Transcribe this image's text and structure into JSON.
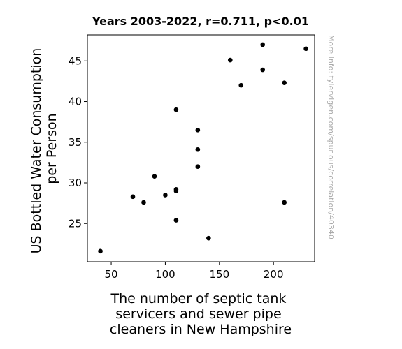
{
  "chart_data": {
    "type": "scatter",
    "title": "Years 2003-2022, r=0.711, p<0.01",
    "xlabel_lines": [
      "The number of septic tank",
      "servicers and sewer pipe",
      "cleaners in New Hampshire"
    ],
    "ylabel_lines": [
      "US Bottled Water Consumption",
      "per Person"
    ],
    "xlim": [
      28,
      238
    ],
    "ylim": [
      20.3,
      48.2
    ],
    "xticks": [
      50,
      100,
      150,
      200
    ],
    "yticks": [
      25,
      30,
      35,
      40,
      45
    ],
    "marker_color": "#000000",
    "grid": false,
    "points": [
      {
        "x": 40,
        "y": 21.6
      },
      {
        "x": 70,
        "y": 28.3
      },
      {
        "x": 80,
        "y": 27.6
      },
      {
        "x": 90,
        "y": 30.8
      },
      {
        "x": 100,
        "y": 28.5
      },
      {
        "x": 110,
        "y": 29.2
      },
      {
        "x": 110,
        "y": 29.0
      },
      {
        "x": 110,
        "y": 25.4
      },
      {
        "x": 110,
        "y": 39.0
      },
      {
        "x": 130,
        "y": 36.5
      },
      {
        "x": 130,
        "y": 34.1
      },
      {
        "x": 130,
        "y": 32.0
      },
      {
        "x": 140,
        "y": 23.2
      },
      {
        "x": 160,
        "y": 45.1
      },
      {
        "x": 170,
        "y": 42.0
      },
      {
        "x": 190,
        "y": 47.0
      },
      {
        "x": 190,
        "y": 43.9
      },
      {
        "x": 210,
        "y": 42.3
      },
      {
        "x": 210,
        "y": 27.6
      },
      {
        "x": 230,
        "y": 46.5
      }
    ]
  },
  "watermark": "More info: tylervigen.com/spurious/correlation/40340"
}
